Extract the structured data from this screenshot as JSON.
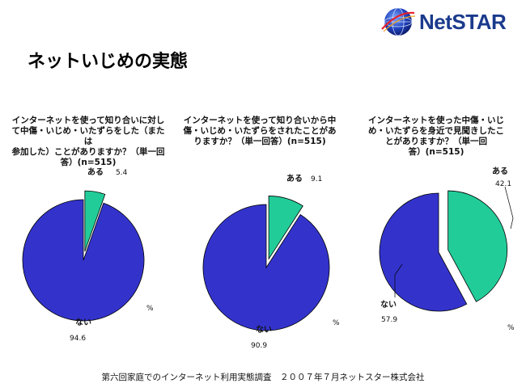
{
  "header": {
    "logo_text": "NetSTAR",
    "page_title": "ネットいじめの実態"
  },
  "colors": {
    "no_color": "#3333cc",
    "yes_color": "#22cc99",
    "edge_color": "#000000",
    "logo_color": "#1a3a8c"
  },
  "footer": {
    "source": "第六回家庭でのインターネット利用実態調査　２００７年７月ネットスター株式会社"
  },
  "chart_data": [
    {
      "type": "pie",
      "title": "インターネットを使って知り合いに対して中傷・いじめ・いたずらをした（または参加した）ことがありますか？（単一回答）(n=515)",
      "title_lines": [
        "インターネットを使って知り合いに対し",
        "て中傷・いじめ・いたずらをした（または",
        "参加した）ことがありますか？（単一回",
        "答）(n=515)"
      ],
      "labels": [
        "ない",
        "ある"
      ],
      "values": [
        94.6,
        5.4
      ],
      "value_labels": [
        "94.6",
        "5.4"
      ],
      "unit": "%"
    },
    {
      "type": "pie",
      "title": "インターネットを使って知り合いから中傷・いじめ・いたずらをされたことがありますか？（単一回答）(n=515)",
      "title_lines": [
        "インターネットを使って知り合いから中",
        "傷・いじめ・いたずらをされたことがあ",
        "りますか？（単一回答）(n=515)"
      ],
      "labels": [
        "ない",
        "ある"
      ],
      "values": [
        90.9,
        9.1
      ],
      "value_labels": [
        "90.9",
        "9.1"
      ],
      "unit": "%"
    },
    {
      "type": "pie",
      "title": "インターネットを使った中傷・いじめ・いたずらを身近で見聞きしたことがありますか？（単一回答）(n=515)",
      "title_lines": [
        "インターネットを使った中傷・いじ",
        "め・いたずらを身近で見聞きしたこ",
        "とがありますか？（単一回",
        "答）(n=515)"
      ],
      "labels": [
        "ない",
        "ある"
      ],
      "values": [
        57.9,
        42.1
      ],
      "value_labels": [
        "57.9",
        "42.1"
      ],
      "unit": "%"
    }
  ]
}
